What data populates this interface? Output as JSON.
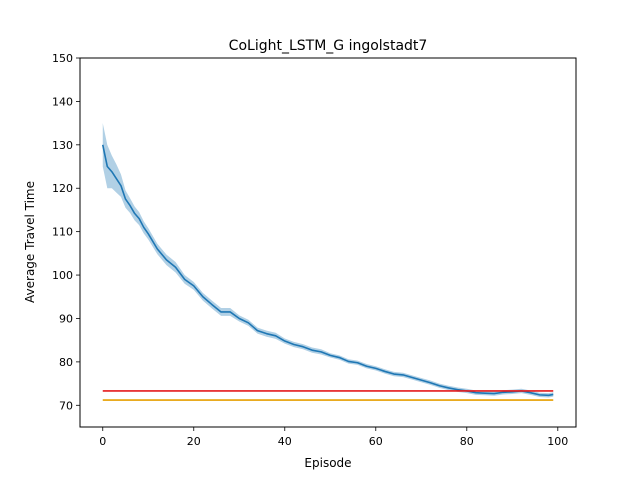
{
  "chart_data": {
    "type": "line",
    "title": "CoLight_LSTM_G ingolstadt7",
    "xlabel": "Episode",
    "ylabel": "Average Travel Time",
    "xlim": [
      -5,
      104
    ],
    "ylim": [
      65,
      150
    ],
    "xticks": [
      0,
      20,
      40,
      60,
      80,
      100
    ],
    "yticks": [
      70,
      80,
      90,
      100,
      110,
      120,
      130,
      140,
      150
    ],
    "grid": false,
    "legend": "none",
    "series": [
      {
        "color": "#1f77b4",
        "band_color": "#1f77b4",
        "x": [
          0,
          1,
          2,
          3,
          4,
          5,
          6,
          7,
          8,
          9,
          10,
          12,
          14,
          16,
          18,
          20,
          22,
          24,
          26,
          28,
          30,
          32,
          34,
          36,
          38,
          40,
          42,
          44,
          46,
          48,
          50,
          52,
          54,
          56,
          58,
          60,
          62,
          64,
          66,
          68,
          70,
          72,
          74,
          76,
          78,
          80,
          82,
          84,
          86,
          88,
          90,
          92,
          94,
          96,
          98,
          99
        ],
        "mean": [
          130.0,
          125.0,
          123.8,
          122.2,
          120.6,
          117.5,
          116.0,
          114.2,
          113.0,
          111.0,
          109.5,
          106.0,
          103.5,
          101.8,
          99.0,
          97.5,
          95.0,
          93.2,
          91.5,
          91.5,
          90.0,
          89.0,
          87.2,
          86.5,
          86.0,
          84.8,
          84.0,
          83.5,
          82.7,
          82.3,
          81.5,
          81.0,
          80.1,
          79.8,
          79.0,
          78.5,
          77.8,
          77.2,
          77.0,
          76.4,
          75.8,
          75.2,
          74.5,
          74.0,
          73.6,
          73.3,
          72.9,
          72.8,
          72.7,
          73.0,
          73.1,
          73.3,
          72.9,
          72.4,
          72.3,
          72.5
        ],
        "lower": [
          125.0,
          120.0,
          120.0,
          119.0,
          118.0,
          115.5,
          114.3,
          112.6,
          111.5,
          109.6,
          108.2,
          104.8,
          102.3,
          100.6,
          98.0,
          96.6,
          94.1,
          92.3,
          90.6,
          90.6,
          89.3,
          88.3,
          86.5,
          85.8,
          85.3,
          84.2,
          83.4,
          82.9,
          82.1,
          81.7,
          81.0,
          80.5,
          79.6,
          79.3,
          78.5,
          78.0,
          77.3,
          76.7,
          76.5,
          75.9,
          75.3,
          74.7,
          74.0,
          73.5,
          73.1,
          72.8,
          72.4,
          72.3,
          72.2,
          72.5,
          72.6,
          72.8,
          72.4,
          71.9,
          71.8,
          72.0
        ],
        "upper": [
          135.0,
          130.0,
          127.5,
          125.5,
          123.2,
          119.5,
          117.7,
          115.8,
          114.5,
          112.4,
          110.8,
          107.2,
          104.7,
          103.0,
          100.0,
          98.4,
          95.9,
          94.1,
          92.4,
          92.4,
          90.7,
          89.7,
          87.9,
          87.2,
          86.7,
          85.4,
          84.6,
          84.1,
          83.3,
          82.9,
          82.0,
          81.5,
          80.6,
          80.3,
          79.5,
          79.0,
          78.3,
          77.7,
          77.5,
          76.9,
          76.3,
          75.7,
          75.0,
          74.5,
          74.1,
          73.8,
          73.4,
          73.3,
          73.2,
          73.5,
          73.6,
          73.8,
          73.4,
          72.9,
          72.8,
          73.0
        ]
      },
      {
        "color": "#e41a1c",
        "x": [
          0,
          99
        ],
        "y": [
          73.3,
          73.3
        ]
      },
      {
        "color": "#e69f00",
        "x": [
          0,
          99
        ],
        "y": [
          71.2,
          71.2
        ]
      }
    ]
  }
}
